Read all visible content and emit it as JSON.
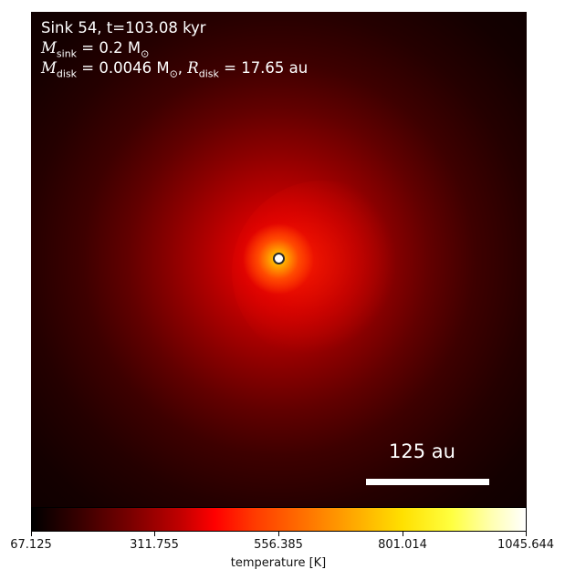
{
  "annotation": {
    "line1": "Sink 54, t=103.08 kyr",
    "msink_label": "M",
    "msink_sub": "sink",
    "msink_value": " = 0.2 M",
    "sun_symbol": "⊙",
    "mdisk_label": "M",
    "mdisk_sub": "disk",
    "mdisk_value": " = 0.0046 M",
    "rdisk_label": "R",
    "rdisk_sub": "disk",
    "rdisk_value": " = 17.65 au"
  },
  "scalebar": {
    "label": "125 au"
  },
  "colorbar": {
    "label": "temperature [K]",
    "ticks": [
      "67.125",
      "311.755",
      "556.385",
      "801.014",
      "1045.644"
    ],
    "colors": [
      "#000000",
      "#ff0000",
      "#ffff00",
      "#ffffff"
    ]
  }
}
